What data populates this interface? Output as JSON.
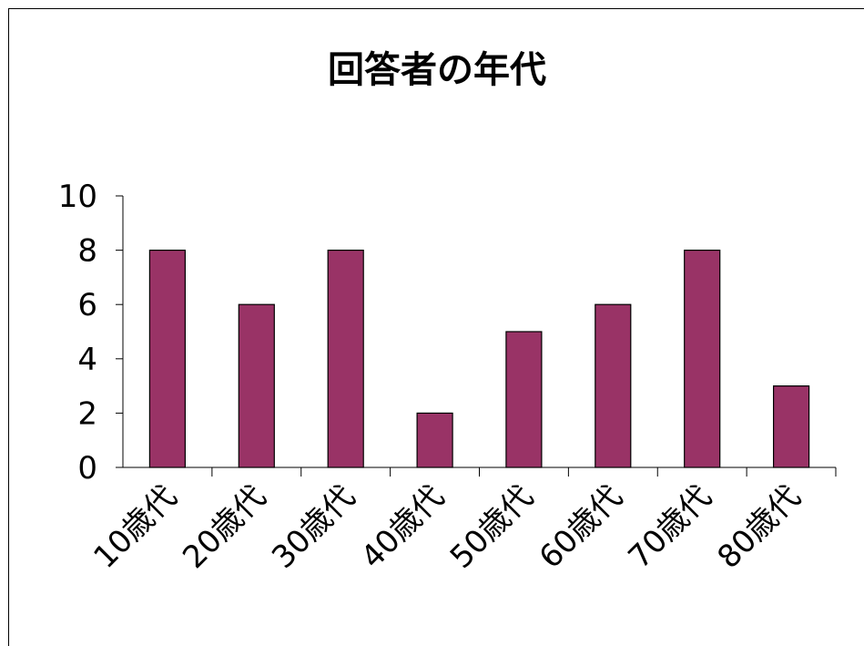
{
  "chart_data": {
    "type": "bar",
    "title": "回答者の年代",
    "xlabel": "",
    "ylabel": "",
    "categories": [
      "10歳代",
      "20歳代",
      "30歳代",
      "40歳代",
      "50歳代",
      "60歳代",
      "70歳代",
      "80歳代"
    ],
    "values": [
      8,
      6,
      8,
      2,
      5,
      6,
      8,
      3
    ],
    "ylim": [
      0,
      10
    ],
    "yticks": [
      "0",
      "2",
      "4",
      "6",
      "8",
      "10"
    ],
    "grid": false,
    "legend": "none",
    "bar_color": "#993366",
    "bar_edge_color": "#000000"
  }
}
